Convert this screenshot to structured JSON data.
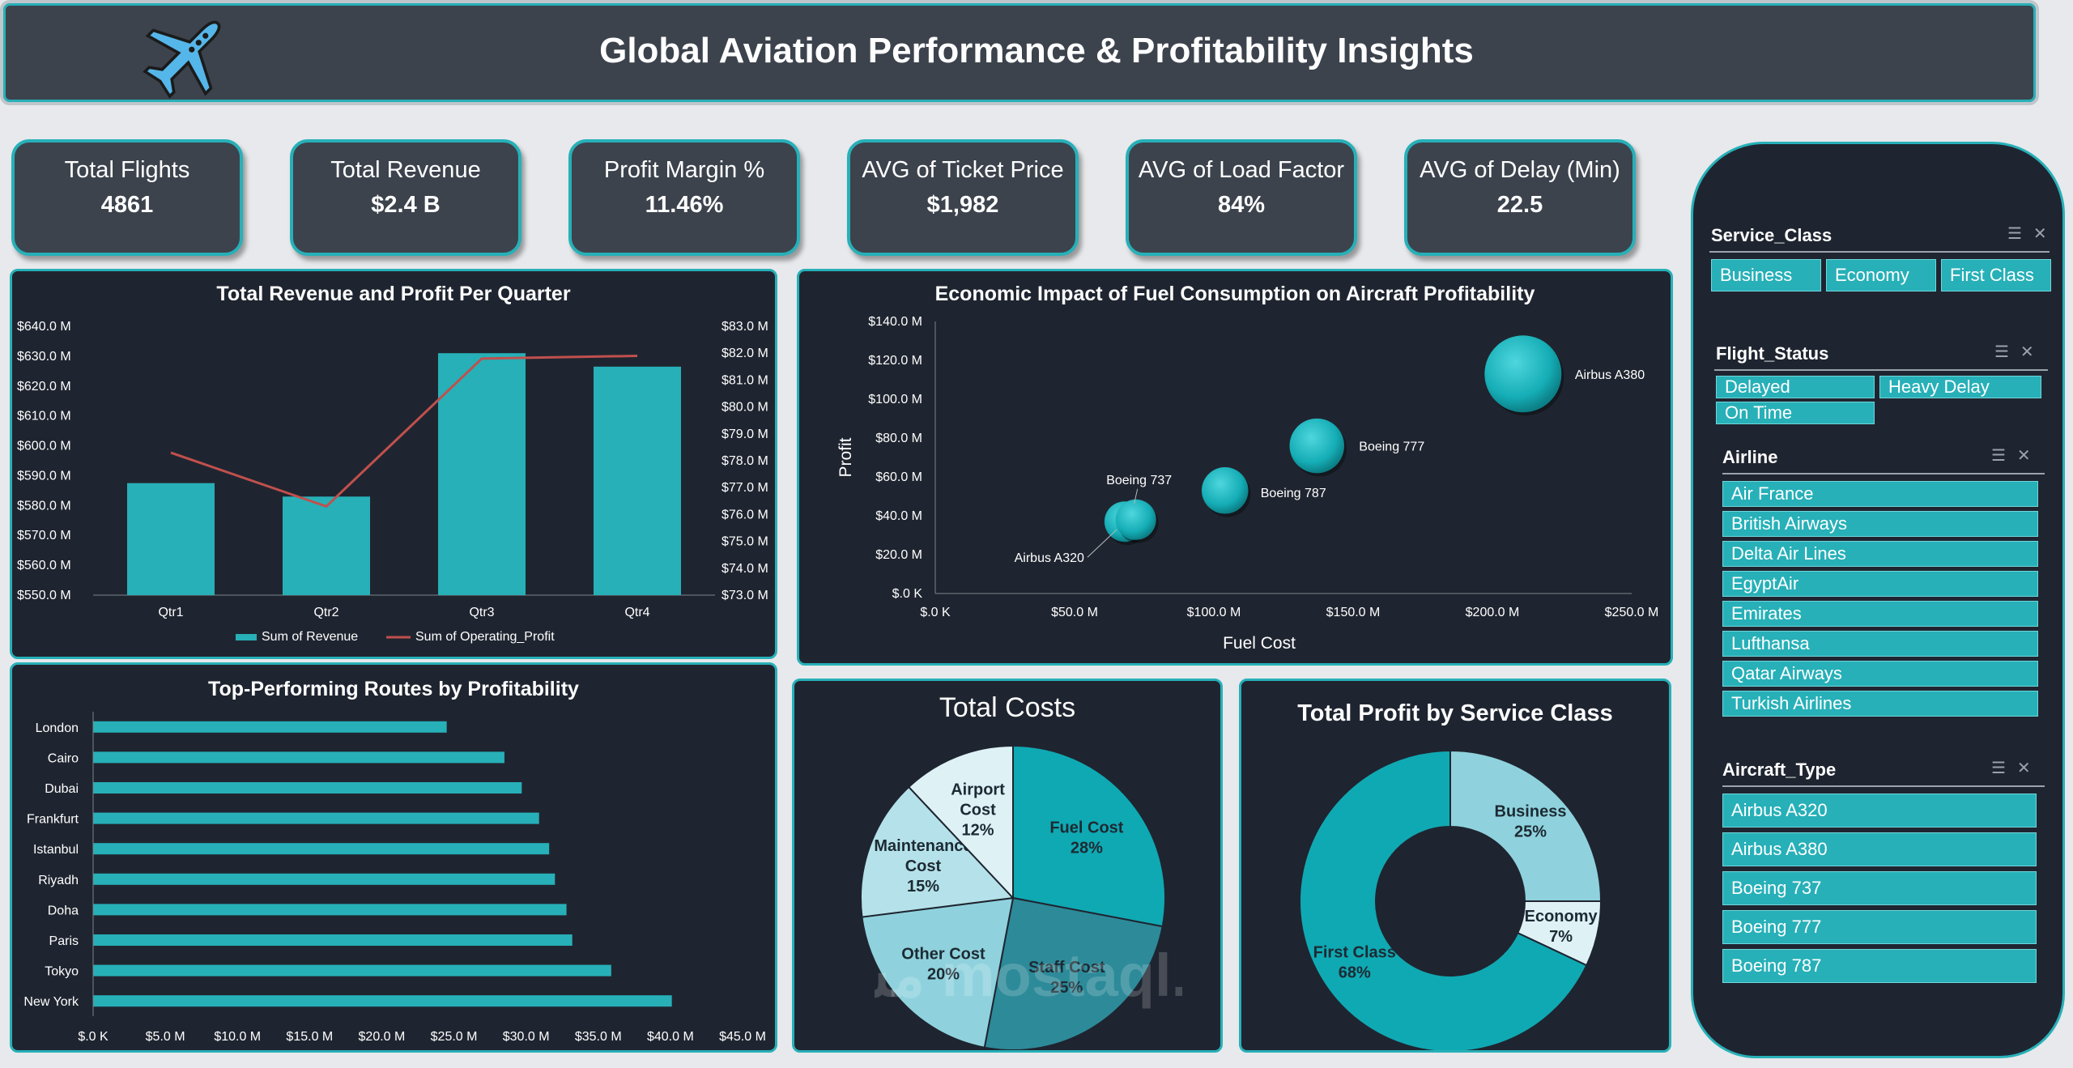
{
  "header": {
    "title": "Global Aviation Performance & Profitability Insights",
    "icon": "airplane-icon"
  },
  "kpis": [
    {
      "label": "Total Flights",
      "value": "4861"
    },
    {
      "label": "Total Revenue",
      "value": "$2.4 B"
    },
    {
      "label": "Profit Margin %",
      "value": "11.46%"
    },
    {
      "label": "AVG of Ticket Price",
      "value": "$1,982"
    },
    {
      "label": "AVG of Load Factor",
      "value": "84%"
    },
    {
      "label": "AVG of Delay (Min)",
      "value": "22.5"
    }
  ],
  "slicers": {
    "service_class": {
      "title": "Service_Class",
      "items": [
        "Business",
        "Economy",
        "First Class"
      ]
    },
    "flight_status": {
      "title": "Flight_Status",
      "items": [
        "Delayed",
        "Heavy Delay",
        "On Time"
      ]
    },
    "airline": {
      "title": "Airline",
      "items": [
        "Air France",
        "British Airways",
        "Delta Air Lines",
        "EgyptAir",
        "Emirates",
        "Lufthansa",
        "Qatar Airways",
        "Turkish Airlines"
      ]
    },
    "aircraft_type": {
      "title": "Aircraft_Type",
      "items": [
        "Airbus A320",
        "Airbus A380",
        "Boeing 737",
        "Boeing 777",
        "Boeing 787"
      ]
    }
  },
  "colors": {
    "accent": "#27b0b8",
    "panel": "#1f2530",
    "line": "#c0504d"
  },
  "watermark": "مستقل mostaql.com",
  "chart_data": [
    {
      "id": "revenue_profit_quarter",
      "type": "bar",
      "title": "Total Revenue and Profit Per Quarter",
      "categories": [
        "Qtr1",
        "Qtr2",
        "Qtr3",
        "Qtr4"
      ],
      "series": [
        {
          "name": "Sum of Revenue",
          "type": "bar",
          "axis": "left",
          "values": [
            587.5,
            583,
            631,
            626.5
          ]
        },
        {
          "name": "Sum of Operating_Profit",
          "type": "line",
          "axis": "right",
          "values": [
            78.3,
            76.3,
            81.8,
            81.9
          ]
        }
      ],
      "ylim": [
        550,
        640
      ],
      "yticks": [
        "$550.0 M",
        "$560.0 M",
        "$570.0 M",
        "$580.0 M",
        "$590.0 M",
        "$600.0 M",
        "$610.0 M",
        "$620.0 M",
        "$630.0 M",
        "$640.0 M"
      ],
      "y2lim": [
        73,
        83
      ],
      "y2ticks": [
        "$73.0 M",
        "$74.0 M",
        "$75.0 M",
        "$76.0 M",
        "$77.0 M",
        "$78.0 M",
        "$79.0 M",
        "$80.0 M",
        "$81.0 M",
        "$82.0 M",
        "$83.0 M"
      ],
      "legend": "bottom"
    },
    {
      "id": "fuel_bubble",
      "type": "scatter",
      "title": "Economic Impact of Fuel Consumption on Aircraft Profitability",
      "xlabel": "Fuel Cost",
      "ylabel": "Profit",
      "xlim": [
        0,
        250
      ],
      "ylim": [
        0,
        140
      ],
      "xticks": [
        "$.0 K",
        "$50.0 M",
        "$100.0 M",
        "$150.0 M",
        "$200.0 M",
        "$250.0 M"
      ],
      "yticks": [
        "$.0 K",
        "$20.0 M",
        "$40.0 M",
        "$60.0 M",
        "$80.0 M",
        "$100.0 M",
        "$120.0 M",
        "$140.0 M"
      ],
      "points": [
        {
          "label": "Airbus A320",
          "x": 68,
          "y": 37,
          "size": 1.0
        },
        {
          "label": "Boeing 737",
          "x": 72,
          "y": 38,
          "size": 1.0
        },
        {
          "label": "Boeing 787",
          "x": 104,
          "y": 53,
          "size": 1.15
        },
        {
          "label": "Boeing 777",
          "x": 137,
          "y": 76,
          "size": 1.35
        },
        {
          "label": "Airbus A380",
          "x": 211,
          "y": 113,
          "size": 1.9
        }
      ]
    },
    {
      "id": "top_routes",
      "type": "bar",
      "orientation": "horizontal",
      "title": "Top-Performing Routes by Profitability",
      "categories": [
        "London",
        "Cairo",
        "Dubai",
        "Frankfurt",
        "Istanbul",
        "Riyadh",
        "Doha",
        "Paris",
        "Tokyo",
        "New York"
      ],
      "values": [
        24.5,
        28.5,
        29.7,
        30.9,
        31.6,
        32.0,
        32.8,
        33.2,
        35.9,
        40.1
      ],
      "xlim": [
        0,
        45
      ],
      "xticks": [
        "$.0 K",
        "$5.0 M",
        "$10.0 M",
        "$15.0 M",
        "$20.0 M",
        "$25.0 M",
        "$30.0 M",
        "$35.0 M",
        "$40.0 M",
        "$45.0 M"
      ]
    },
    {
      "id": "total_costs",
      "type": "pie",
      "title": "Total  Costs",
      "slices": [
        {
          "label": [
            "Fuel Cost"
          ],
          "pct": "28%",
          "value": 28,
          "color": "#0fa9b3"
        },
        {
          "label": [
            "Staff Cost"
          ],
          "pct": "25%",
          "value": 25,
          "color": "#2d8a99"
        },
        {
          "label": [
            "Other Cost"
          ],
          "pct": "20%",
          "value": 20,
          "color": "#8fd2dd"
        },
        {
          "label": [
            "Maintenance",
            "Cost"
          ],
          "pct": "15%",
          "value": 15,
          "color": "#b5e2ea"
        },
        {
          "label": [
            "Airport",
            "Cost"
          ],
          "pct": "12%",
          "value": 12,
          "color": "#def2f6"
        }
      ]
    },
    {
      "id": "profit_service_class",
      "type": "pie",
      "donut": true,
      "title": "Total Profit by Service Class",
      "slices": [
        {
          "label": [
            "Business"
          ],
          "pct": "25%",
          "value": 25,
          "color": "#8fd2dd"
        },
        {
          "label": [
            "Economy"
          ],
          "pct": "7%",
          "value": 7,
          "color": "#def2f6"
        },
        {
          "label": [
            "First Class"
          ],
          "pct": "68%",
          "value": 68,
          "color": "#0fa9b3"
        }
      ]
    }
  ]
}
